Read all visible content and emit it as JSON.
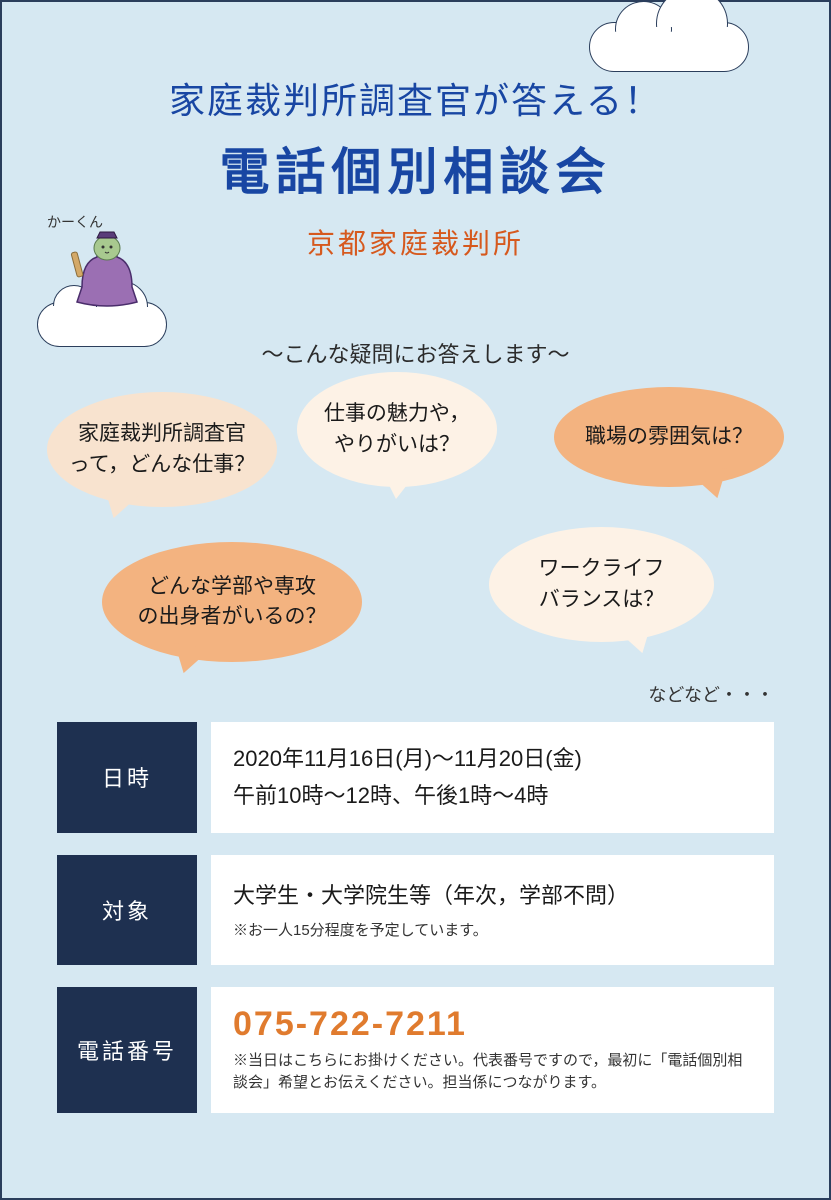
{
  "colors": {
    "page_bg": "#d6e8f2",
    "border": "#2b3e5c",
    "title_blue": "#1846a3",
    "accent_orange_text": "#d6591e",
    "label_navy": "#1e3050",
    "white": "#ffffff",
    "phone_orange": "#e07b2e",
    "bubble_light": "#fdf2e6",
    "bubble_mid": "#f8e3cf",
    "bubble_dark": "#f3b380",
    "text": "#1a1a1a"
  },
  "header": {
    "title_line1": "家庭裁判所調査官が答える！",
    "title_line2": "電話個別相談会",
    "subtitle": "京都家庭裁判所"
  },
  "mascot": {
    "name": "かーくん",
    "robe_color": "#9b6fb3",
    "face_color": "#a8c98f",
    "hat_color": "#5a3d7a"
  },
  "tagline": "～こんな疑問にお答えします～",
  "bubbles": [
    {
      "text": "家庭裁判所調査官\nって，どんな仕事？",
      "bg": "#f8e3cf"
    },
    {
      "text": "仕事の魅力や，\nやりがいは？",
      "bg": "#fdf2e6"
    },
    {
      "text": "職場の雰囲気は？",
      "bg": "#f3b380"
    },
    {
      "text": "どんな学部や専攻\nの出身者がいるの？",
      "bg": "#f3b380"
    },
    {
      "text": "ワークライフ\nバランスは？",
      "bg": "#fdf2e6"
    }
  ],
  "etc_text": "などなど・・・",
  "info": [
    {
      "label": "日時",
      "lines": [
        "2020年11月16日(月)～11月20日(金)",
        "午前10時～12時、午後1時～4時"
      ],
      "notes": []
    },
    {
      "label": "対象",
      "lines": [
        "大学生・大学院生等（年次，学部不問）"
      ],
      "notes": [
        "※お一人15分程度を予定しています。"
      ]
    },
    {
      "label": "電話番号",
      "phone": "075-722-7211",
      "notes": [
        "※当日はこちらにお掛けください。代表番号ですので，最初に「電話個別相談会」希望とお伝えください。担当係につながります。"
      ]
    }
  ],
  "typography": {
    "title1_size": 36,
    "title2_size": 50,
    "subtitle_size": 28,
    "tagline_size": 22,
    "bubble_size": 21,
    "info_label_size": 22,
    "info_line_size": 22,
    "info_note_size": 15,
    "phone_size": 34
  }
}
